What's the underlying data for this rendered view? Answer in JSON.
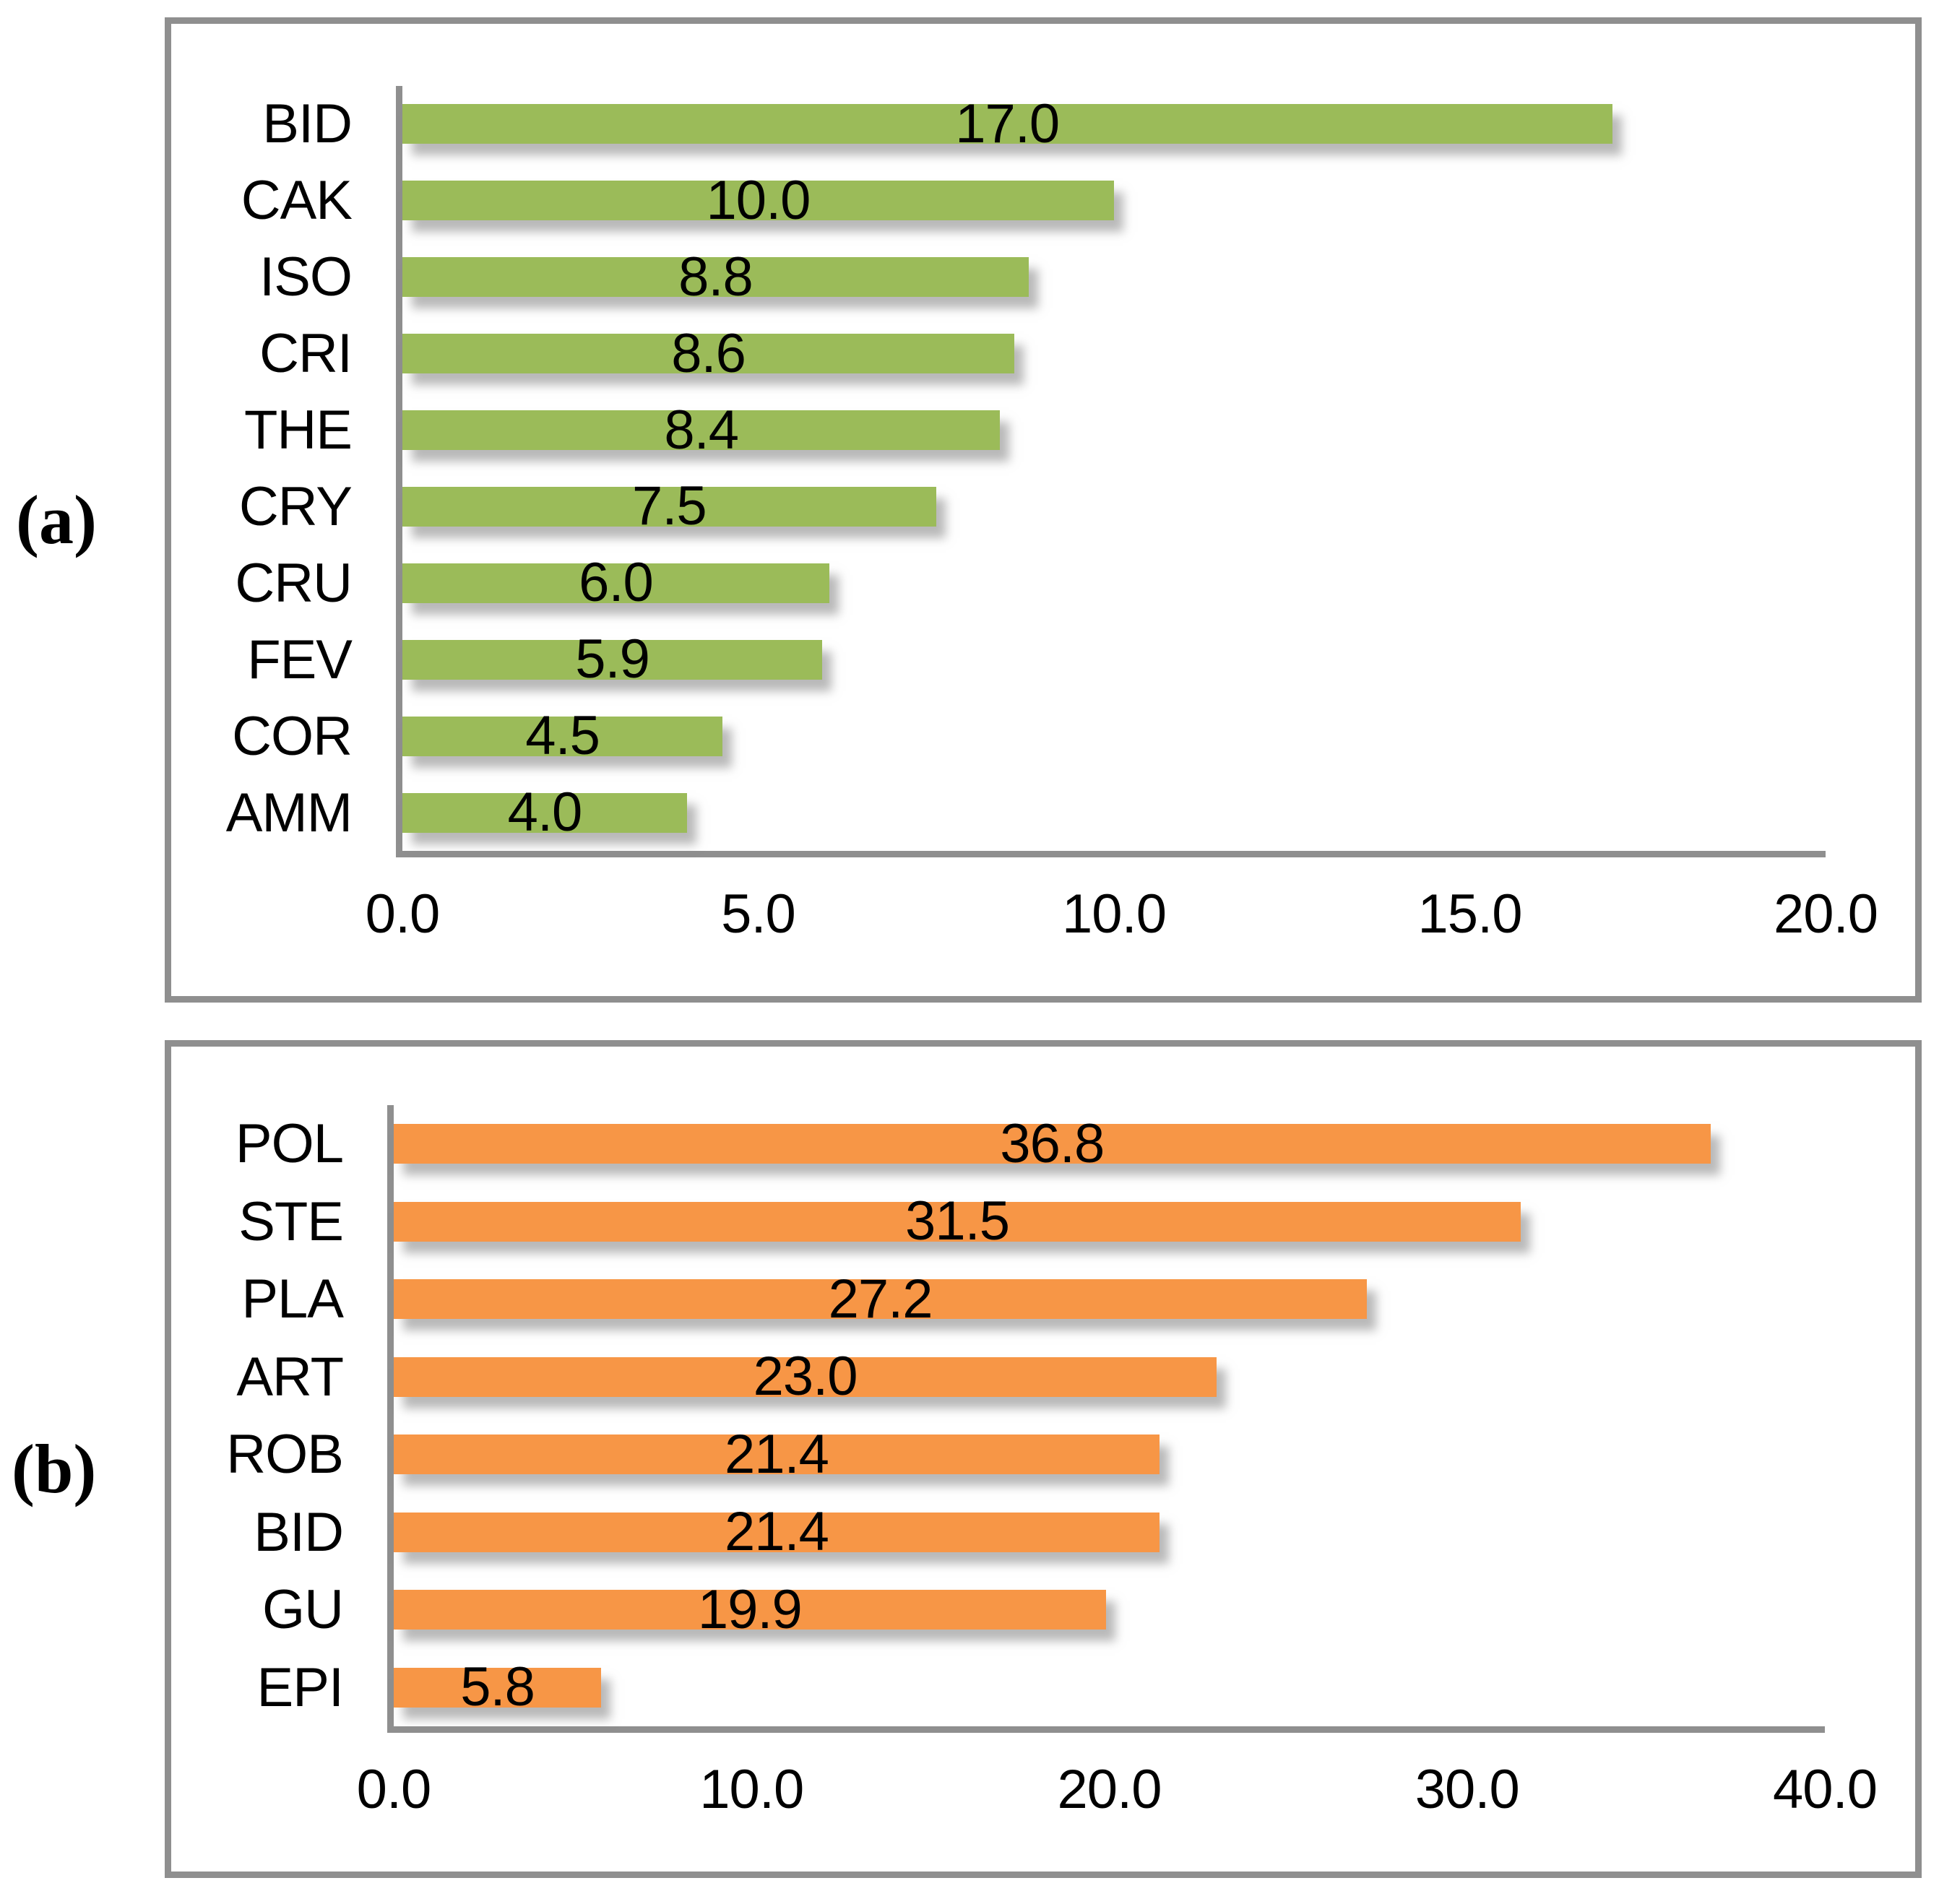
{
  "figure": {
    "panel_a_label": "(a)",
    "panel_b_label": "(b)"
  },
  "chart_data": [
    {
      "type": "bar",
      "orientation": "horizontal",
      "panel": "(a)",
      "categories": [
        "BID",
        "CAK",
        "ISO",
        "CRI",
        "THE",
        "CRY",
        "CRU",
        "FEV",
        "COR",
        "AMM"
      ],
      "values": [
        17.0,
        10.0,
        8.8,
        8.6,
        8.4,
        7.5,
        6.0,
        5.9,
        4.5,
        4.0
      ],
      "data_labels": [
        "17.0",
        "10.0",
        "8.8",
        "8.6",
        "8.4",
        "7.5",
        "6.0",
        "5.9",
        "4.5",
        "4.0"
      ],
      "x_ticks": [
        "0.0",
        "5.0",
        "10.0",
        "15.0",
        "20.0"
      ],
      "xlim": [
        0,
        20
      ],
      "bar_color": "#9BBB59",
      "axis_color": "#8F8F8F",
      "data_label_position": "center",
      "grid": false,
      "legend": false
    },
    {
      "type": "bar",
      "orientation": "horizontal",
      "panel": "(b)",
      "categories": [
        "POL",
        "STE",
        "PLA",
        "ART",
        "ROB",
        "BID",
        "GU",
        "EPI"
      ],
      "values": [
        36.8,
        31.5,
        27.2,
        23.0,
        21.4,
        21.4,
        19.9,
        5.8
      ],
      "data_labels": [
        "36.8",
        "31.5",
        "27.2",
        "23.0",
        "21.4",
        "21.4",
        "19.9",
        "5.8"
      ],
      "x_ticks": [
        "0.0",
        "10.0",
        "20.0",
        "30.0",
        "40.0"
      ],
      "xlim": [
        0,
        40
      ],
      "bar_color": "#F79646",
      "axis_color": "#8F8F8F",
      "data_label_position": "center",
      "grid": false,
      "legend": false
    }
  ]
}
